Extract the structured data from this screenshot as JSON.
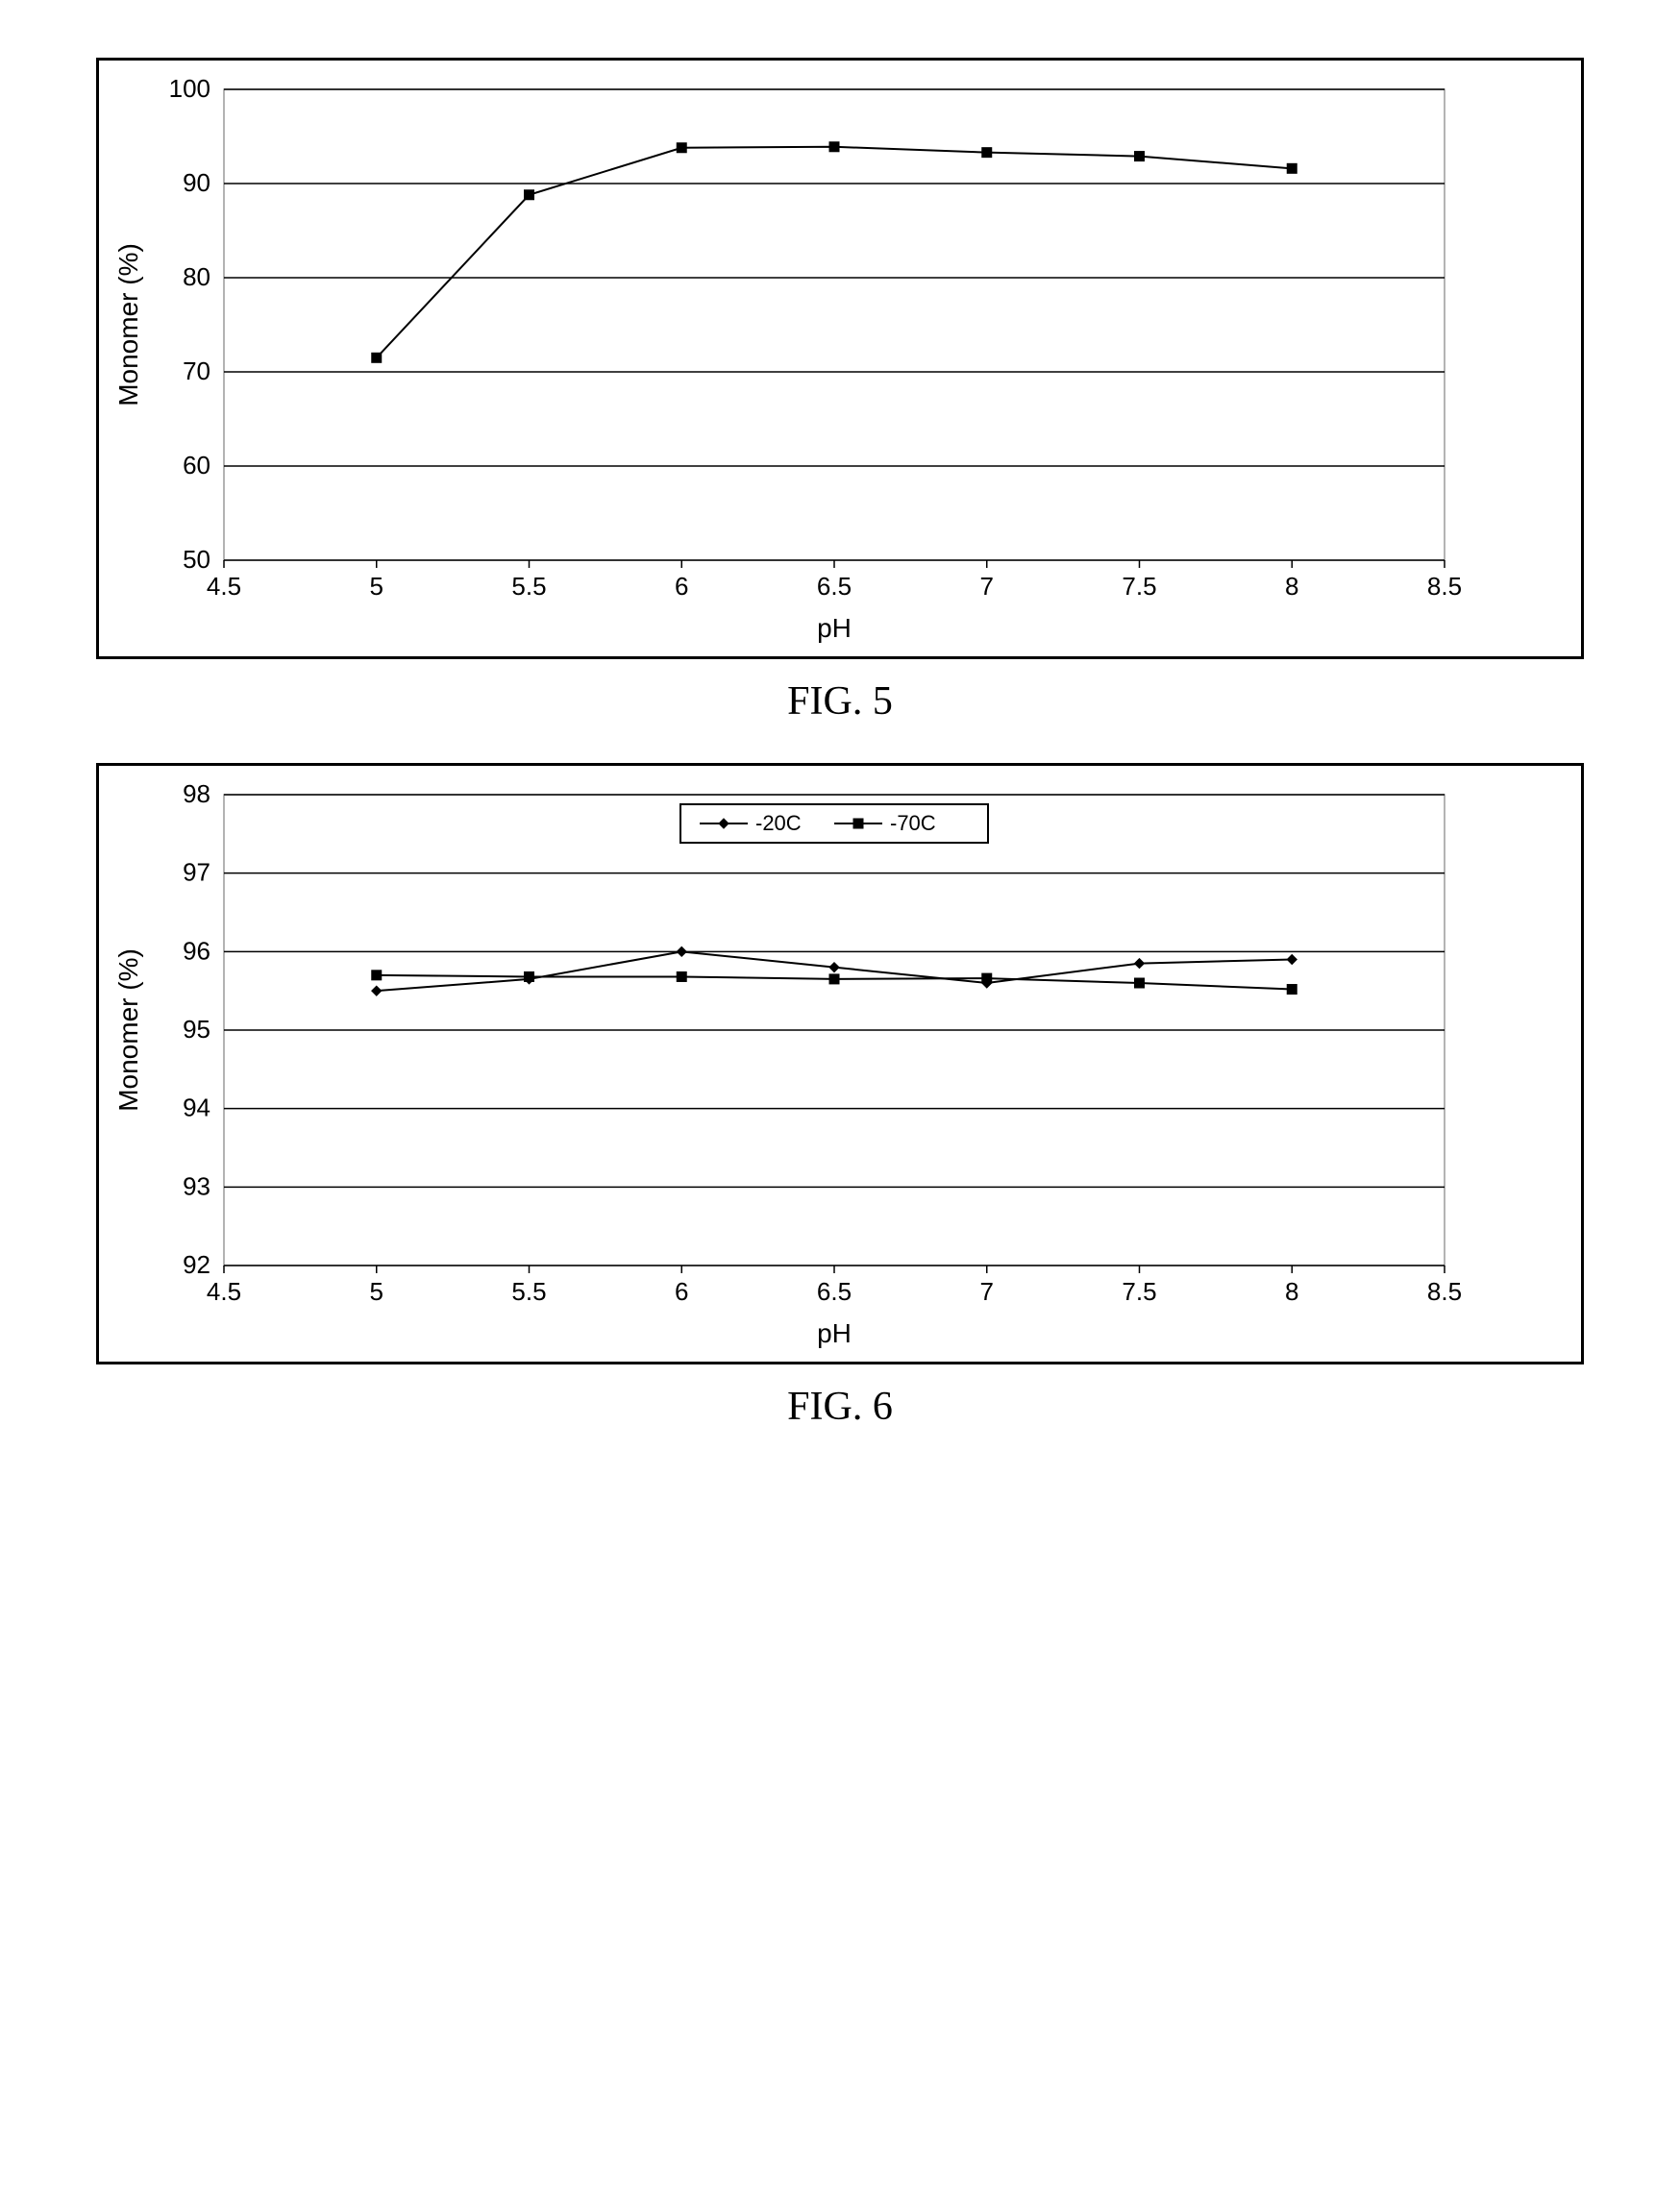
{
  "fig5": {
    "caption": "FIG. 5",
    "type": "line",
    "xlabel": "pH",
    "ylabel": "Monomer (%)",
    "xlim": [
      4.5,
      8.5
    ],
    "ylim": [
      50,
      100
    ],
    "xticks": [
      4.5,
      5,
      5.5,
      6,
      6.5,
      7,
      7.5,
      8,
      8.5
    ],
    "yticks": [
      50,
      60,
      70,
      80,
      90,
      100
    ],
    "label_fontsize": 28,
    "tick_fontsize": 26,
    "grid_color": "#000000",
    "plot_border_color": "#9a9a9a",
    "background_color": "#ffffff",
    "series": [
      {
        "name": "monomer",
        "marker": "square",
        "marker_size": 10,
        "line_color": "#000000",
        "marker_color": "#000000",
        "line_width": 2,
        "x": [
          5,
          5.5,
          6,
          6.5,
          7,
          7.5,
          8
        ],
        "y": [
          71.5,
          88.8,
          93.8,
          93.9,
          93.3,
          92.9,
          91.6
        ]
      }
    ]
  },
  "fig6": {
    "caption": "FIG. 6",
    "type": "line",
    "xlabel": "pH",
    "ylabel": "Monomer (%)",
    "xlim": [
      4.5,
      8.5
    ],
    "ylim": [
      92,
      98
    ],
    "xticks": [
      4.5,
      5,
      5.5,
      6,
      6.5,
      7,
      7.5,
      8,
      8.5
    ],
    "yticks": [
      92,
      93,
      94,
      95,
      96,
      97,
      98
    ],
    "label_fontsize": 28,
    "tick_fontsize": 26,
    "grid_color": "#000000",
    "plot_border_color": "#9a9a9a",
    "background_color": "#ffffff",
    "legend": {
      "position": "top-center",
      "fontsize": 22,
      "border_color": "#000000",
      "background": "#ffffff",
      "items": [
        {
          "label": "-20C",
          "marker": "diamond"
        },
        {
          "label": "-70C",
          "marker": "square"
        }
      ]
    },
    "series": [
      {
        "name": "-20C",
        "marker": "diamond",
        "marker_size": 10,
        "line_color": "#000000",
        "marker_color": "#000000",
        "line_width": 2,
        "x": [
          5,
          5.5,
          6,
          6.5,
          7,
          7.5,
          8
        ],
        "y": [
          95.5,
          95.65,
          96.0,
          95.8,
          95.6,
          95.85,
          95.9
        ]
      },
      {
        "name": "-70C",
        "marker": "square",
        "marker_size": 10,
        "line_color": "#000000",
        "marker_color": "#000000",
        "line_width": 2,
        "x": [
          5,
          5.5,
          6,
          6.5,
          7,
          7.5,
          8
        ],
        "y": [
          95.7,
          95.68,
          95.68,
          95.65,
          95.66,
          95.6,
          95.52
        ]
      }
    ]
  }
}
